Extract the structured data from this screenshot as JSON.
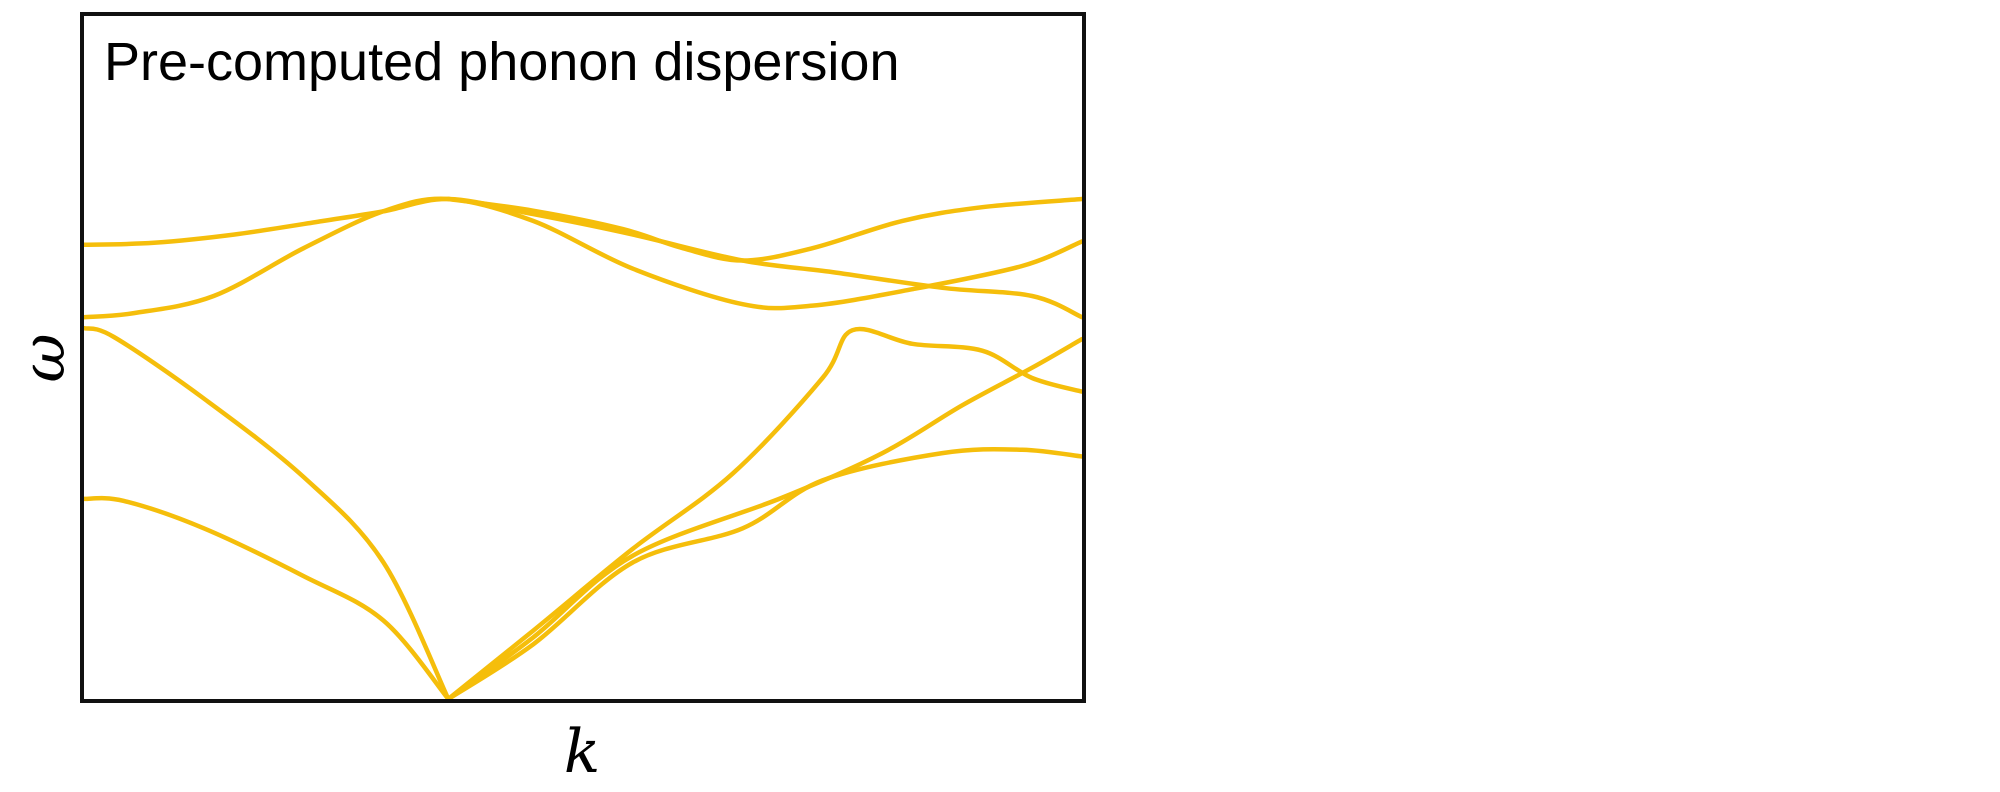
{
  "chart_data": {
    "type": "line",
    "title": "Pre-computed phonon dispersion",
    "xlabel": "k",
    "ylabel": "ω",
    "xlim": [
      0,
      1
    ],
    "ylim": [
      0,
      1
    ],
    "grid": false,
    "legend": "none",
    "tick_labels": "none",
    "line_color": "#F5BE0B",
    "frame_color": "#111111",
    "series": [
      {
        "points": [
          [
            0.0,
            0.293
          ],
          [
            0.04,
            0.29
          ],
          [
            0.12,
            0.25
          ],
          [
            0.22,
            0.18
          ],
          [
            0.3,
            0.115
          ],
          [
            0.365,
            0.0
          ]
        ]
      },
      {
        "points": [
          [
            0.0,
            0.543
          ],
          [
            0.03,
            0.53
          ],
          [
            0.12,
            0.44
          ],
          [
            0.22,
            0.325
          ],
          [
            0.3,
            0.2
          ],
          [
            0.365,
            0.0
          ]
        ]
      },
      {
        "points": [
          [
            0.0,
            0.559
          ],
          [
            0.05,
            0.565
          ],
          [
            0.13,
            0.59
          ],
          [
            0.22,
            0.66
          ],
          [
            0.3,
            0.714
          ],
          [
            0.365,
            0.732
          ],
          [
            0.45,
            0.7
          ],
          [
            0.55,
            0.63
          ],
          [
            0.66,
            0.578
          ],
          [
            0.73,
            0.576
          ],
          [
            0.83,
            0.6
          ],
          [
            0.94,
            0.634
          ],
          [
            1.0,
            0.67
          ]
        ]
      },
      {
        "points": [
          [
            0.0,
            0.665
          ],
          [
            0.07,
            0.668
          ],
          [
            0.15,
            0.68
          ],
          [
            0.24,
            0.7
          ],
          [
            0.3,
            0.714
          ],
          [
            0.365,
            0.732
          ],
          [
            0.45,
            0.71
          ],
          [
            0.55,
            0.68
          ],
          [
            0.66,
            0.642
          ],
          [
            0.75,
            0.625
          ],
          [
            0.86,
            0.602
          ],
          [
            0.95,
            0.59
          ],
          [
            1.0,
            0.559
          ]
        ]
      },
      {
        "points": [
          [
            0.365,
            0.732
          ],
          [
            0.45,
            0.715
          ],
          [
            0.54,
            0.688
          ],
          [
            0.6,
            0.66
          ],
          [
            0.66,
            0.642
          ],
          [
            0.73,
            0.66
          ],
          [
            0.82,
            0.7
          ],
          [
            0.9,
            0.72
          ],
          [
            1.0,
            0.732
          ]
        ]
      },
      {
        "points": [
          [
            0.365,
            0.0
          ],
          [
            0.45,
            0.1
          ],
          [
            0.55,
            0.22
          ],
          [
            0.65,
            0.33
          ],
          [
            0.74,
            0.47
          ],
          [
            0.77,
            0.54
          ],
          [
            0.83,
            0.52
          ],
          [
            0.9,
            0.51
          ],
          [
            0.95,
            0.47
          ],
          [
            1.0,
            0.45
          ]
        ]
      },
      {
        "points": [
          [
            0.365,
            0.0
          ],
          [
            0.45,
            0.08
          ],
          [
            0.55,
            0.2
          ],
          [
            0.66,
            0.25
          ],
          [
            0.74,
            0.32
          ],
          [
            0.86,
            0.36
          ],
          [
            0.94,
            0.365
          ],
          [
            1.0,
            0.355
          ]
        ]
      },
      {
        "points": [
          [
            0.365,
            0.0
          ],
          [
            0.45,
            0.09
          ],
          [
            0.55,
            0.21
          ],
          [
            0.7,
            0.295
          ],
          [
            0.8,
            0.36
          ],
          [
            0.88,
            0.43
          ],
          [
            0.95,
            0.485
          ],
          [
            1.0,
            0.527
          ]
        ]
      }
    ]
  }
}
